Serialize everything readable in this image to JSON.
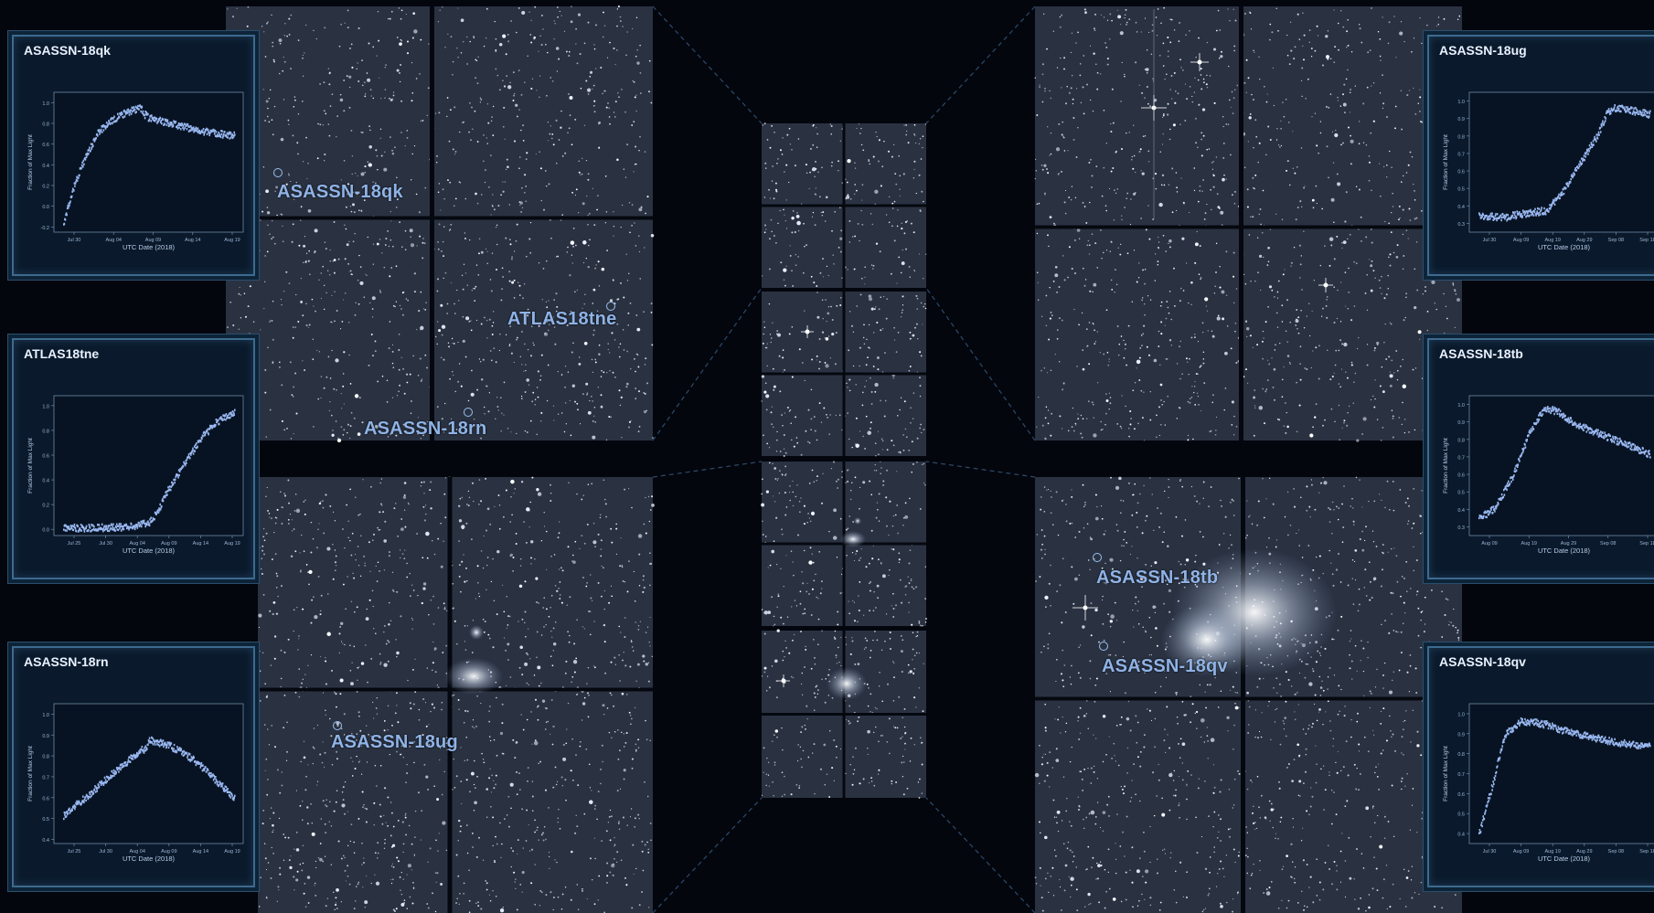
{
  "colors": {
    "background": "#03060d",
    "sky": "#2a3242",
    "label": "#8fb3e6",
    "panel_bg": "#0a1a2c",
    "panel_border": "#3d6a8f",
    "plot_bg": "#071322",
    "curve": "#9ab8f2"
  },
  "transients": [
    {
      "id": "qk",
      "name": "ASASSN-18qk"
    },
    {
      "id": "tne",
      "name": "ATLAS18tne"
    },
    {
      "id": "rn",
      "name": "ASASSN-18rn"
    },
    {
      "id": "ug",
      "name": "ASASSN-18ug"
    },
    {
      "id": "tb",
      "name": "ASASSN-18tb"
    },
    {
      "id": "qv",
      "name": "ASASSN-18qv"
    }
  ],
  "chart_data": [
    {
      "type": "scatter",
      "title": "ASASSN-18qk",
      "xlabel": "UTC Date (2018)",
      "ylabel": "Fraction of Max Light",
      "xticks": [
        "Jul 30",
        "Aug 04",
        "Aug 09",
        "Aug 14",
        "Aug 19"
      ],
      "yticks": [
        "-0.2",
        "0.0",
        "0.2",
        "0.4",
        "0.6",
        "0.8",
        "1.0"
      ],
      "ylim": [
        -0.25,
        1.1
      ],
      "series": [
        {
          "x": [
            0,
            0.05,
            0.12,
            0.2,
            0.3,
            0.4,
            0.45,
            0.47,
            0.5,
            0.6,
            0.7,
            0.8,
            0.9,
            1.0
          ],
          "values": [
            -0.15,
            0.15,
            0.45,
            0.72,
            0.86,
            0.94,
            0.96,
            0.9,
            0.86,
            0.82,
            0.78,
            0.74,
            0.71,
            0.69
          ]
        }
      ]
    },
    {
      "type": "scatter",
      "title": "ATLAS18tne",
      "xlabel": "UTC Date (2018)",
      "ylabel": "Fraction of Max Light",
      "xticks": [
        "Jul 25",
        "Jul 30",
        "Aug 04",
        "Aug 09",
        "Aug 14",
        "Aug 19"
      ],
      "yticks": [
        "0.0",
        "0.2",
        "0.4",
        "0.6",
        "0.8",
        "1.0"
      ],
      "ylim": [
        -0.05,
        1.08
      ],
      "series": [
        {
          "x": [
            0,
            0.2,
            0.4,
            0.5,
            0.55,
            0.6,
            0.7,
            0.8,
            0.9,
            1.0
          ],
          "values": [
            0.02,
            0.02,
            0.03,
            0.06,
            0.15,
            0.3,
            0.52,
            0.74,
            0.88,
            0.95
          ]
        }
      ]
    },
    {
      "type": "scatter",
      "title": "ASASSN-18rn",
      "xlabel": "UTC Date (2018)",
      "ylabel": "Fraction of Max Light",
      "xticks": [
        "Jul 25",
        "Jul 30",
        "Aug 04",
        "Aug 09",
        "Aug 14",
        "Aug 19"
      ],
      "yticks": [
        "0.4",
        "0.5",
        "0.6",
        "0.7",
        "0.8",
        "0.9",
        "1.0"
      ],
      "ylim": [
        0.38,
        1.05
      ],
      "series": [
        {
          "x": [
            0,
            0.15,
            0.3,
            0.45,
            0.48,
            0.5,
            0.6,
            0.7,
            0.8,
            0.9,
            1.0
          ],
          "values": [
            0.52,
            0.62,
            0.73,
            0.83,
            0.84,
            0.88,
            0.86,
            0.82,
            0.76,
            0.68,
            0.6
          ]
        }
      ]
    },
    {
      "type": "scatter",
      "title": "ASASSN-18ug",
      "xlabel": "UTC Date (2018)",
      "ylabel": "Fraction of Max Light",
      "xticks": [
        "Jul 30",
        "Aug 09",
        "Aug 19",
        "Aug 29",
        "Sep 08",
        "Sep 18"
      ],
      "yticks": [
        "0.3",
        "0.4",
        "0.5",
        "0.6",
        "0.7",
        "0.8",
        "0.9",
        "1.0"
      ],
      "ylim": [
        0.25,
        1.05
      ],
      "series": [
        {
          "x": [
            0,
            0.15,
            0.25,
            0.4,
            0.5,
            0.6,
            0.7,
            0.75,
            0.8,
            0.9,
            1.0
          ],
          "values": [
            0.35,
            0.34,
            0.36,
            0.38,
            0.5,
            0.66,
            0.82,
            0.94,
            0.97,
            0.95,
            0.93
          ]
        }
      ]
    },
    {
      "type": "scatter",
      "title": "ASASSN-18tb",
      "xlabel": "UTC Date (2018)",
      "ylabel": "Fraction of Max Light",
      "xticks": [
        "Aug 09",
        "Aug 19",
        "Aug 29",
        "Sep 08",
        "Sep 18"
      ],
      "yticks": [
        "0.3",
        "0.4",
        "0.5",
        "0.6",
        "0.7",
        "0.8",
        "0.9",
        "1.0"
      ],
      "ylim": [
        0.25,
        1.05
      ],
      "series": [
        {
          "x": [
            0,
            0.1,
            0.2,
            0.3,
            0.38,
            0.45,
            0.55,
            0.65,
            0.75,
            0.85,
            1.0
          ],
          "values": [
            0.35,
            0.42,
            0.6,
            0.85,
            0.98,
            0.97,
            0.9,
            0.86,
            0.82,
            0.78,
            0.72
          ]
        }
      ]
    },
    {
      "type": "scatter",
      "title": "ASASSN-18qv",
      "xlabel": "UTC Date (2018)",
      "ylabel": "Fraction of Max Light",
      "xticks": [
        "Jul 30",
        "Aug 09",
        "Aug 19",
        "Aug 29",
        "Sep 08",
        "Sep 18"
      ],
      "yticks": [
        "0.4",
        "0.5",
        "0.6",
        "0.7",
        "0.8",
        "0.9",
        "1.0"
      ],
      "ylim": [
        0.35,
        1.05
      ],
      "series": [
        {
          "x": [
            0,
            0.08,
            0.15,
            0.25,
            0.4,
            0.5,
            0.6,
            0.7,
            0.8,
            0.9,
            1.0
          ],
          "values": [
            0.4,
            0.65,
            0.9,
            0.97,
            0.95,
            0.92,
            0.9,
            0.88,
            0.86,
            0.85,
            0.84
          ]
        }
      ]
    }
  ]
}
